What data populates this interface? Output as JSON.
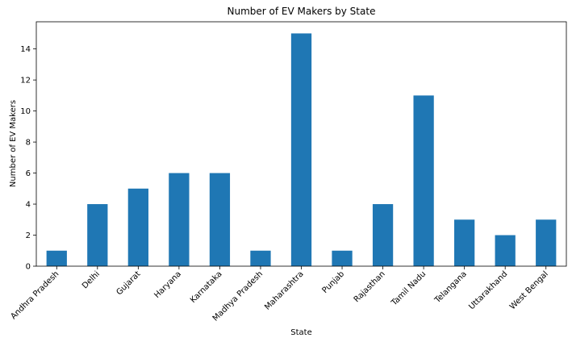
{
  "chart_data": {
    "type": "bar",
    "title": "Number of EV Makers by State",
    "xlabel": "State",
    "ylabel": "Number of EV Makers",
    "categories": [
      "Andhra Pradesh",
      "Delhi",
      "Gujarat",
      "Haryana",
      "Karnataka",
      "Madhya Pradesh",
      "Maharashtra",
      "Punjab",
      "Rajasthan",
      "Tamil Nadu",
      "Telangana",
      "Uttarakhand",
      "West Bengal"
    ],
    "values": [
      1,
      4,
      5,
      6,
      6,
      1,
      15,
      1,
      4,
      11,
      3,
      2,
      3
    ],
    "yticks": [
      0,
      2,
      4,
      6,
      8,
      10,
      12,
      14
    ],
    "ylim": [
      0,
      15.75
    ],
    "grid": false,
    "bar_color": "#1f77b4"
  }
}
